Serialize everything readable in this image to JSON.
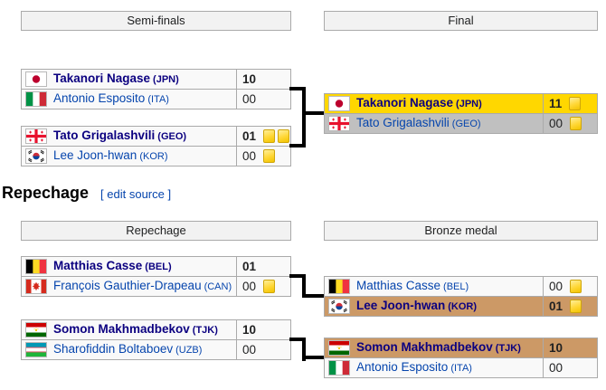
{
  "section": {
    "heading": "Repechage",
    "edit_link": "[ edit source ]"
  },
  "headers": {
    "semifinals": "Semi-finals",
    "final": "Final",
    "repechage": "Repechage",
    "bronze_medal": "Bronze medal"
  },
  "colors": {
    "gold": "#FFD700",
    "silver": "#C0C0C0",
    "bronze": "#CC9966",
    "link": "#0645AD",
    "winner_link": "#0B0080",
    "border": "#AAAAAA",
    "row_bg": "#F9F9F9",
    "header_bg": "#F2F2F2",
    "card_yellow": "#FFD735"
  },
  "matches": {
    "sf1": {
      "rows": [
        {
          "name": "Takanori Nagase",
          "cc": "(JPN)",
          "flag": "JPN",
          "score": "10",
          "cards": 0,
          "winner": true,
          "medal": ""
        },
        {
          "name": "Antonio Esposito",
          "cc": "(ITA)",
          "flag": "ITA",
          "score": "00",
          "cards": 0,
          "winner": false,
          "medal": ""
        }
      ]
    },
    "sf2": {
      "rows": [
        {
          "name": "Tato Grigalashvili",
          "cc": "(GEO)",
          "flag": "GEO",
          "score": "01",
          "cards": 2,
          "winner": true,
          "medal": ""
        },
        {
          "name": "Lee Joon-hwan",
          "cc": "(KOR)",
          "flag": "KOR",
          "score": "00",
          "cards": 1,
          "winner": false,
          "medal": ""
        }
      ]
    },
    "final": {
      "rows": [
        {
          "name": "Takanori Nagase",
          "cc": "(JPN)",
          "flag": "JPN",
          "score": "11",
          "cards": 1,
          "winner": true,
          "medal": "gold"
        },
        {
          "name": "Tato Grigalashvili",
          "cc": "(GEO)",
          "flag": "GEO",
          "score": "00",
          "cards": 1,
          "winner": false,
          "medal": "silver"
        }
      ]
    },
    "rep1": {
      "rows": [
        {
          "name": "Matthias Casse",
          "cc": "(BEL)",
          "flag": "BEL",
          "score": "01",
          "cards": 0,
          "winner": true,
          "medal": ""
        },
        {
          "name": "François Gauthier-Drapeau",
          "cc": "(CAN)",
          "flag": "CAN",
          "score": "00",
          "cards": 1,
          "winner": false,
          "medal": ""
        }
      ]
    },
    "rep2": {
      "rows": [
        {
          "name": "Somon Makhmadbekov",
          "cc": "(TJK)",
          "flag": "TJK",
          "score": "10",
          "cards": 0,
          "winner": true,
          "medal": ""
        },
        {
          "name": "Sharofiddin Boltaboev",
          "cc": "(UZB)",
          "flag": "UZB",
          "score": "00",
          "cards": 0,
          "winner": false,
          "medal": ""
        }
      ]
    },
    "bm1": {
      "rows": [
        {
          "name": "Matthias Casse",
          "cc": "(BEL)",
          "flag": "BEL",
          "score": "00",
          "cards": 1,
          "winner": false,
          "medal": ""
        },
        {
          "name": "Lee Joon-hwan",
          "cc": "(KOR)",
          "flag": "KOR",
          "score": "01",
          "cards": 1,
          "winner": true,
          "medal": "bronze"
        }
      ]
    },
    "bm2": {
      "rows": [
        {
          "name": "Somon Makhmadbekov",
          "cc": "(TJK)",
          "flag": "TJK",
          "score": "10",
          "cards": 0,
          "winner": true,
          "medal": "bronze"
        },
        {
          "name": "Antonio Esposito",
          "cc": "(ITA)",
          "flag": "ITA",
          "score": "00",
          "cards": 0,
          "winner": false,
          "medal": ""
        }
      ]
    }
  }
}
